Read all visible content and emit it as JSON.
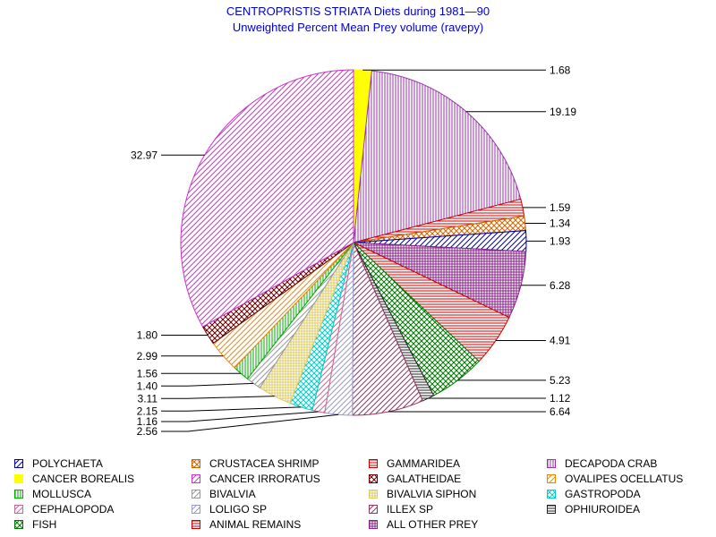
{
  "chart_data": {
    "type": "pie",
    "title": "CENTROPRISTIS STRIATA Diets during 1981—90",
    "subtitle": "Unweighted Percent Mean Prey volume (ravepy)",
    "slices": [
      {
        "label": "CANCER BOREALIS",
        "value": 1.68,
        "value_label": "1.68",
        "color": "#ffff00",
        "pattern": "solid"
      },
      {
        "label": "DECAPODA CRAB",
        "value": 19.19,
        "value_label": "19.19",
        "color": "#9933aa",
        "pattern": "vlines"
      },
      {
        "label": "GAMMARIDEA",
        "value": 1.59,
        "value_label": "1.59",
        "color": "#cc0000",
        "pattern": "hlines"
      },
      {
        "label": "CRUSTACEA SHRIMP",
        "value": 1.34,
        "value_label": "1.34",
        "color": "#cc6600",
        "pattern": "cross"
      },
      {
        "label": "POLYCHAETA",
        "value": 1.93,
        "value_label": "1.93",
        "color": "#0000aa",
        "pattern": "diag"
      },
      {
        "label": "ALL OTHER PREY",
        "value": 6.28,
        "value_label": "6.28",
        "color": "#882288",
        "pattern": "grid"
      },
      {
        "label": "ANIMAL REMAINS",
        "value": 4.91,
        "value_label": "4.91",
        "color": "#cc0000",
        "pattern": "hlines"
      },
      {
        "label": "FISH",
        "value": 5.23,
        "value_label": "5.23",
        "color": "#007700",
        "pattern": "cross"
      },
      {
        "label": "OPHIUROIDEA",
        "value": 1.12,
        "value_label": "1.12",
        "color": "#222222",
        "pattern": "hlines"
      },
      {
        "label": "ILLEX SP",
        "value": 6.64,
        "value_label": "6.64",
        "color": "#993366",
        "pattern": "diag"
      },
      {
        "label": "LOLIGO SP",
        "value": 2.56,
        "value_label": "2.56",
        "color": "#9999cc",
        "pattern": "diag"
      },
      {
        "label": "CEPHALOPODA",
        "value": 1.16,
        "value_label": "1.16",
        "color": "#cc6699",
        "pattern": "diag"
      },
      {
        "label": "GASTROPODA",
        "value": 2.15,
        "value_label": "2.15",
        "color": "#00cccc",
        "pattern": "cross"
      },
      {
        "label": "BIVALVIA SIPHON",
        "value": 3.11,
        "value_label": "3.11",
        "color": "#ddcc66",
        "pattern": "grid"
      },
      {
        "label": "BIVALVIA",
        "value": 1.4,
        "value_label": "1.40",
        "color": "#999999",
        "pattern": "diag"
      },
      {
        "label": "MOLLUSCA",
        "value": 1.56,
        "value_label": "1.56",
        "color": "#00aa00",
        "pattern": "vlines"
      },
      {
        "label": "OVALIPES OCELLATUS",
        "value": 2.99,
        "value_label": "2.99",
        "color": "#ee8800",
        "pattern": "diag"
      },
      {
        "label": "GALATHEIDAE",
        "value": 1.8,
        "value_label": "1.80",
        "color": "#660000",
        "pattern": "cross"
      },
      {
        "label": "CANCER IRRORATUS",
        "value": 32.97,
        "value_label": "32.97",
        "color": "#cc33cc",
        "pattern": "diag"
      }
    ],
    "legend": [
      {
        "label": "POLYCHAETA",
        "color": "#0000aa",
        "pattern": "diag"
      },
      {
        "label": "CRUSTACEA SHRIMP",
        "color": "#cc6600",
        "pattern": "cross"
      },
      {
        "label": "GAMMARIDEA",
        "color": "#cc0000",
        "pattern": "hlines"
      },
      {
        "label": "DECAPODA CRAB",
        "color": "#9933aa",
        "pattern": "vlines"
      },
      {
        "label": "CANCER BOREALIS",
        "color": "#ffff00",
        "pattern": "solid"
      },
      {
        "label": "CANCER IRRORATUS",
        "color": "#cc33cc",
        "pattern": "diag"
      },
      {
        "label": "GALATHEIDAE",
        "color": "#660000",
        "pattern": "cross"
      },
      {
        "label": "OVALIPES OCELLATUS",
        "color": "#ee8800",
        "pattern": "diag"
      },
      {
        "label": "MOLLUSCA",
        "color": "#00aa00",
        "pattern": "vlines"
      },
      {
        "label": "BIVALVIA",
        "color": "#999999",
        "pattern": "diag"
      },
      {
        "label": "BIVALVIA SIPHON",
        "color": "#ddcc66",
        "pattern": "grid"
      },
      {
        "label": "GASTROPODA",
        "color": "#00cccc",
        "pattern": "cross"
      },
      {
        "label": "CEPHALOPODA",
        "color": "#cc6699",
        "pattern": "diag"
      },
      {
        "label": "LOLIGO SP",
        "color": "#9999cc",
        "pattern": "diag"
      },
      {
        "label": "ILLEX SP",
        "color": "#993366",
        "pattern": "diag"
      },
      {
        "label": "OPHIUROIDEA",
        "color": "#222222",
        "pattern": "hlines"
      },
      {
        "label": "FISH",
        "color": "#007700",
        "pattern": "cross"
      },
      {
        "label": "ANIMAL REMAINS",
        "color": "#cc0000",
        "pattern": "hlines"
      },
      {
        "label": "ALL OTHER PREY",
        "color": "#882288",
        "pattern": "grid"
      }
    ],
    "legend_placement": "bottom"
  }
}
